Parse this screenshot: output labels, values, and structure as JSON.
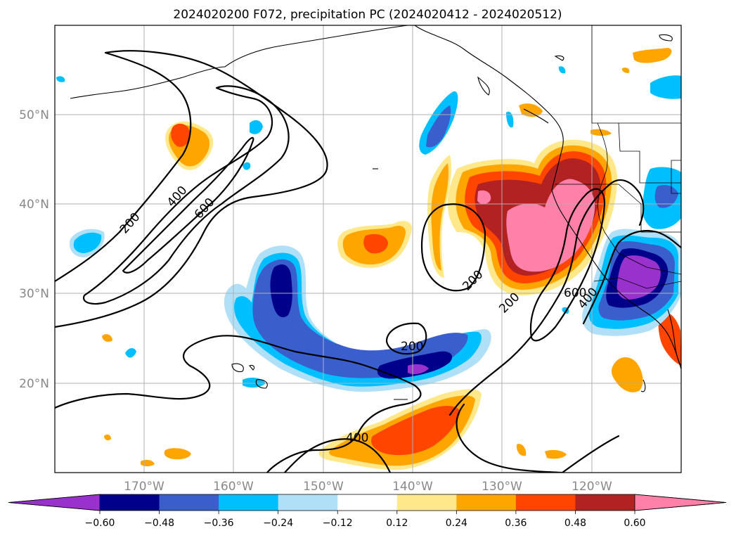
{
  "title": "2024020200 F072, precipitation PC (2024020412 - 2024020512)",
  "lat_labels": [
    "50°N",
    "40°N",
    "30°N",
    "20°N"
  ],
  "lon_labels": [
    "170°W",
    "160°W",
    "150°W",
    "140°W",
    "130°W",
    "120°W"
  ],
  "colorbar": {
    "tick_labels": [
      "−0.60",
      "−0.48",
      "−0.36",
      "−0.24",
      "−0.12",
      "0.12",
      "0.24",
      "0.36",
      "0.48",
      "0.60"
    ],
    "bins": [
      {
        "lo": null,
        "hi": -0.6,
        "color": "#9932cc"
      },
      {
        "lo": -0.6,
        "hi": -0.48,
        "color": "#00008b"
      },
      {
        "lo": -0.48,
        "hi": -0.36,
        "color": "#3a5fcd"
      },
      {
        "lo": -0.36,
        "hi": -0.24,
        "color": "#00bfff"
      },
      {
        "lo": -0.24,
        "hi": -0.12,
        "color": "#afe0f8"
      },
      {
        "lo": -0.12,
        "hi": 0.12,
        "color": "#ffffff"
      },
      {
        "lo": 0.12,
        "hi": 0.24,
        "color": "#ffe88a"
      },
      {
        "lo": 0.24,
        "hi": 0.36,
        "color": "#ffa500"
      },
      {
        "lo": 0.36,
        "hi": 0.48,
        "color": "#ff4500"
      },
      {
        "lo": 0.48,
        "hi": 0.6,
        "color": "#b22222"
      },
      {
        "lo": 0.6,
        "hi": null,
        "color": "#ff80a8"
      }
    ]
  },
  "contour_labels": [
    "200",
    "400",
    "600",
    "200",
    "200",
    "200",
    "600",
    "400",
    "400"
  ]
}
